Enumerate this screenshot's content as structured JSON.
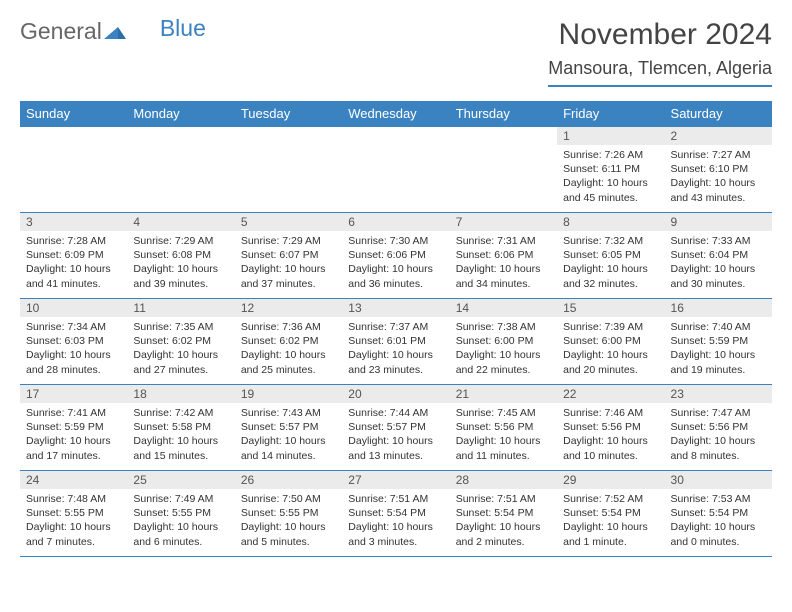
{
  "logo": {
    "part1": "General",
    "part2": "Blue"
  },
  "header": {
    "month_title": "November 2024",
    "location": "Mansoura, Tlemcen, Algeria"
  },
  "colors": {
    "accent": "#3b83c0",
    "header_bg": "#3b83c0",
    "header_text": "#ffffff",
    "daynum_bg": "#ebebeb",
    "body_bg": "#ffffff",
    "text": "#333333"
  },
  "weekdays": [
    "Sunday",
    "Monday",
    "Tuesday",
    "Wednesday",
    "Thursday",
    "Friday",
    "Saturday"
  ],
  "weeks": [
    [
      {
        "blank": true
      },
      {
        "blank": true
      },
      {
        "blank": true
      },
      {
        "blank": true
      },
      {
        "blank": true
      },
      {
        "day": "1",
        "sunrise": "Sunrise: 7:26 AM",
        "sunset": "Sunset: 6:11 PM",
        "daylight": "Daylight: 10 hours and 45 minutes."
      },
      {
        "day": "2",
        "sunrise": "Sunrise: 7:27 AM",
        "sunset": "Sunset: 6:10 PM",
        "daylight": "Daylight: 10 hours and 43 minutes."
      }
    ],
    [
      {
        "day": "3",
        "sunrise": "Sunrise: 7:28 AM",
        "sunset": "Sunset: 6:09 PM",
        "daylight": "Daylight: 10 hours and 41 minutes."
      },
      {
        "day": "4",
        "sunrise": "Sunrise: 7:29 AM",
        "sunset": "Sunset: 6:08 PM",
        "daylight": "Daylight: 10 hours and 39 minutes."
      },
      {
        "day": "5",
        "sunrise": "Sunrise: 7:29 AM",
        "sunset": "Sunset: 6:07 PM",
        "daylight": "Daylight: 10 hours and 37 minutes."
      },
      {
        "day": "6",
        "sunrise": "Sunrise: 7:30 AM",
        "sunset": "Sunset: 6:06 PM",
        "daylight": "Daylight: 10 hours and 36 minutes."
      },
      {
        "day": "7",
        "sunrise": "Sunrise: 7:31 AM",
        "sunset": "Sunset: 6:06 PM",
        "daylight": "Daylight: 10 hours and 34 minutes."
      },
      {
        "day": "8",
        "sunrise": "Sunrise: 7:32 AM",
        "sunset": "Sunset: 6:05 PM",
        "daylight": "Daylight: 10 hours and 32 minutes."
      },
      {
        "day": "9",
        "sunrise": "Sunrise: 7:33 AM",
        "sunset": "Sunset: 6:04 PM",
        "daylight": "Daylight: 10 hours and 30 minutes."
      }
    ],
    [
      {
        "day": "10",
        "sunrise": "Sunrise: 7:34 AM",
        "sunset": "Sunset: 6:03 PM",
        "daylight": "Daylight: 10 hours and 28 minutes."
      },
      {
        "day": "11",
        "sunrise": "Sunrise: 7:35 AM",
        "sunset": "Sunset: 6:02 PM",
        "daylight": "Daylight: 10 hours and 27 minutes."
      },
      {
        "day": "12",
        "sunrise": "Sunrise: 7:36 AM",
        "sunset": "Sunset: 6:02 PM",
        "daylight": "Daylight: 10 hours and 25 minutes."
      },
      {
        "day": "13",
        "sunrise": "Sunrise: 7:37 AM",
        "sunset": "Sunset: 6:01 PM",
        "daylight": "Daylight: 10 hours and 23 minutes."
      },
      {
        "day": "14",
        "sunrise": "Sunrise: 7:38 AM",
        "sunset": "Sunset: 6:00 PM",
        "daylight": "Daylight: 10 hours and 22 minutes."
      },
      {
        "day": "15",
        "sunrise": "Sunrise: 7:39 AM",
        "sunset": "Sunset: 6:00 PM",
        "daylight": "Daylight: 10 hours and 20 minutes."
      },
      {
        "day": "16",
        "sunrise": "Sunrise: 7:40 AM",
        "sunset": "Sunset: 5:59 PM",
        "daylight": "Daylight: 10 hours and 19 minutes."
      }
    ],
    [
      {
        "day": "17",
        "sunrise": "Sunrise: 7:41 AM",
        "sunset": "Sunset: 5:59 PM",
        "daylight": "Daylight: 10 hours and 17 minutes."
      },
      {
        "day": "18",
        "sunrise": "Sunrise: 7:42 AM",
        "sunset": "Sunset: 5:58 PM",
        "daylight": "Daylight: 10 hours and 15 minutes."
      },
      {
        "day": "19",
        "sunrise": "Sunrise: 7:43 AM",
        "sunset": "Sunset: 5:57 PM",
        "daylight": "Daylight: 10 hours and 14 minutes."
      },
      {
        "day": "20",
        "sunrise": "Sunrise: 7:44 AM",
        "sunset": "Sunset: 5:57 PM",
        "daylight": "Daylight: 10 hours and 13 minutes."
      },
      {
        "day": "21",
        "sunrise": "Sunrise: 7:45 AM",
        "sunset": "Sunset: 5:56 PM",
        "daylight": "Daylight: 10 hours and 11 minutes."
      },
      {
        "day": "22",
        "sunrise": "Sunrise: 7:46 AM",
        "sunset": "Sunset: 5:56 PM",
        "daylight": "Daylight: 10 hours and 10 minutes."
      },
      {
        "day": "23",
        "sunrise": "Sunrise: 7:47 AM",
        "sunset": "Sunset: 5:56 PM",
        "daylight": "Daylight: 10 hours and 8 minutes."
      }
    ],
    [
      {
        "day": "24",
        "sunrise": "Sunrise: 7:48 AM",
        "sunset": "Sunset: 5:55 PM",
        "daylight": "Daylight: 10 hours and 7 minutes."
      },
      {
        "day": "25",
        "sunrise": "Sunrise: 7:49 AM",
        "sunset": "Sunset: 5:55 PM",
        "daylight": "Daylight: 10 hours and 6 minutes."
      },
      {
        "day": "26",
        "sunrise": "Sunrise: 7:50 AM",
        "sunset": "Sunset: 5:55 PM",
        "daylight": "Daylight: 10 hours and 5 minutes."
      },
      {
        "day": "27",
        "sunrise": "Sunrise: 7:51 AM",
        "sunset": "Sunset: 5:54 PM",
        "daylight": "Daylight: 10 hours and 3 minutes."
      },
      {
        "day": "28",
        "sunrise": "Sunrise: 7:51 AM",
        "sunset": "Sunset: 5:54 PM",
        "daylight": "Daylight: 10 hours and 2 minutes."
      },
      {
        "day": "29",
        "sunrise": "Sunrise: 7:52 AM",
        "sunset": "Sunset: 5:54 PM",
        "daylight": "Daylight: 10 hours and 1 minute."
      },
      {
        "day": "30",
        "sunrise": "Sunrise: 7:53 AM",
        "sunset": "Sunset: 5:54 PM",
        "daylight": "Daylight: 10 hours and 0 minutes."
      }
    ]
  ]
}
